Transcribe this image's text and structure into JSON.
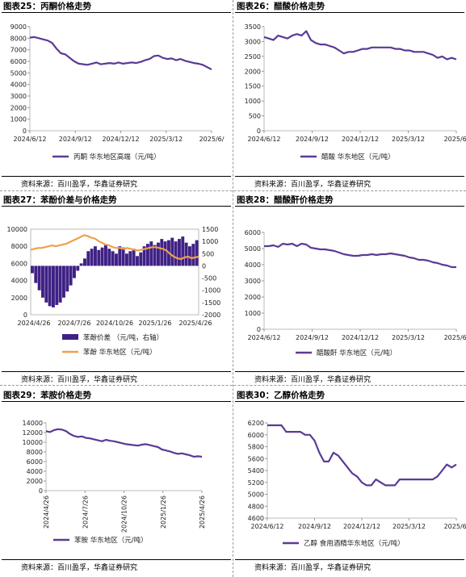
{
  "charts": [
    {
      "id": "c25",
      "title": "图表25：丙酮价格走势",
      "source": "资料来源：百川盈孚，华鑫证券研究",
      "chart_data": {
        "type": "line",
        "ylim": [
          0,
          9000
        ],
        "yticks": [
          0,
          1000,
          2000,
          3000,
          4000,
          5000,
          6000,
          7000,
          8000,
          9000
        ],
        "xticks": [
          "2024/6/12",
          "2024/9/12",
          "2024/12/12",
          "2025/3/12",
          "2025/6/"
        ],
        "series": [
          {
            "name": "丙酮 华东地区高端（元/吨）",
            "color": "#5b3a96",
            "values": [
              8050,
              8100,
              8000,
              7900,
              7800,
              7600,
              7100,
              6700,
              6600,
              6300,
              6000,
              5800,
              5750,
              5700,
              5800,
              5900,
              5750,
              5800,
              5850,
              5800,
              5900,
              5800,
              5850,
              5900,
              5850,
              5950,
              6100,
              6200,
              6450,
              6500,
              6300,
              6200,
              6250,
              6100,
              6200,
              6050,
              5950,
              5850,
              5800,
              5700,
              5500,
              5300
            ]
          }
        ]
      }
    },
    {
      "id": "c26",
      "title": "图表26：醋酸价格走势",
      "source": "资料来源：百川盈孚，华鑫证券研究",
      "chart_data": {
        "type": "line",
        "ylim": [
          0,
          3500
        ],
        "yticks": [
          0,
          500,
          1000,
          1500,
          2000,
          2500,
          3000,
          3500
        ],
        "xticks": [
          "2024/6/12",
          "2024/9/12",
          "2024/12/12",
          "2025/3/12",
          "2025/6/"
        ],
        "series": [
          {
            "name": "醋酸 华东地区（元/吨）",
            "color": "#5b3a96",
            "values": [
              3150,
              3100,
              3050,
              3200,
              3150,
              3100,
              3200,
              3250,
              3200,
              3350,
              3050,
              2950,
              2900,
              2900,
              2850,
              2800,
              2700,
              2600,
              2650,
              2650,
              2700,
              2750,
              2750,
              2800,
              2800,
              2800,
              2800,
              2800,
              2750,
              2750,
              2700,
              2700,
              2650,
              2650,
              2650,
              2600,
              2550,
              2450,
              2500,
              2400,
              2450,
              2400
            ]
          }
        ]
      }
    },
    {
      "id": "c27",
      "title": "图表27：苯酚价差与价格走势",
      "source": "资料来源：百川盈孚，华鑫证券研究",
      "chart_data": {
        "type": "bar",
        "ylim": [
          0,
          10000
        ],
        "yticks": [
          0,
          2000,
          4000,
          6000,
          8000,
          10000
        ],
        "y2lim": [
          -2000,
          1500
        ],
        "y2ticks": [
          -2000,
          -1500,
          -1000,
          -500,
          0,
          500,
          1000,
          1500
        ],
        "xticks": [
          "2024/4/26",
          "2024/7/26",
          "2024/10/26",
          "2025/1/26",
          "2025/4/26"
        ],
        "series": [
          {
            "name": "苯酚价差 （元/吨，右轴）",
            "color": "#3f2185",
            "axis": "right",
            "values": [
              -300,
              -700,
              -1000,
              -1300,
              -1500,
              -1650,
              -1700,
              -1600,
              -1500,
              -1300,
              -1050,
              -800,
              -500,
              -200,
              100,
              300,
              600,
              700,
              800,
              650,
              750,
              850,
              700,
              600,
              500,
              800,
              750,
              500,
              600,
              700,
              400,
              550,
              800,
              900,
              1000,
              850,
              950,
              1100,
              1000,
              1050,
              1150,
              1000,
              1100,
              1200,
              950,
              800,
              900,
              1050
            ]
          },
          {
            "name": "苯酚 华东地区（元/吨）",
            "color": "#f0a04b",
            "axis": "left",
            "values": [
              7600,
              7700,
              7800,
              7800,
              7900,
              8000,
              8100,
              8000,
              8100,
              8200,
              8300,
              8500,
              8700,
              8900,
              9100,
              9300,
              9200,
              9000,
              8900,
              8600,
              8400,
              8200,
              8100,
              7900,
              7800,
              7800,
              7700,
              7800,
              7700,
              7600,
              7500,
              7600,
              7700,
              7800,
              7900,
              7900,
              7800,
              7700,
              7500,
              7100,
              6800,
              6600,
              6500,
              6700,
              6800,
              6600,
              6700,
              6800
            ]
          }
        ]
      }
    },
    {
      "id": "c28",
      "title": "图表28：醋酸酐价格走势",
      "source": "资料来源：百川盈孚，华鑫证券研究",
      "chart_data": {
        "type": "line",
        "ylim": [
          0,
          6000
        ],
        "yticks": [
          0,
          1000,
          2000,
          3000,
          4000,
          5000,
          6000
        ],
        "xticks": [
          "2024/6/12",
          "2024/9/12",
          "2024/12/12",
          "2025/3/12",
          "2025/6/"
        ],
        "series": [
          {
            "name": "醋酸酐 华东地区（元/吨）",
            "color": "#5b3a96",
            "values": [
              5150,
              5150,
              5200,
              5100,
              5300,
              5250,
              5300,
              5150,
              5300,
              5250,
              5050,
              5000,
              4950,
              4950,
              4900,
              4850,
              4750,
              4650,
              4600,
              4550,
              4550,
              4600,
              4600,
              4650,
              4600,
              4650,
              4650,
              4700,
              4650,
              4600,
              4550,
              4450,
              4400,
              4300,
              4300,
              4250,
              4150,
              4100,
              4000,
              3950,
              3850,
              3850
            ]
          }
        ]
      }
    },
    {
      "id": "c29",
      "title": "图表29：苯胺价格走势",
      "source": "资料来源：百川盈孚，华鑫证券研究",
      "chart_data": {
        "type": "line",
        "ylim": [
          0,
          14000
        ],
        "yticks": [
          0,
          2000,
          4000,
          6000,
          8000,
          10000,
          12000,
          14000
        ],
        "xticks": [
          "2024/4/26",
          "2024/7/26",
          "2024/10/26",
          "2025/1/26",
          "2025/4/26"
        ],
        "series": [
          {
            "name": "苯胺 华东地区（元/吨）",
            "color": "#5b3a96",
            "values": [
              12300,
              12100,
              12500,
              12700,
              12600,
              12300,
              11700,
              11300,
              11100,
              11200,
              10900,
              10800,
              10600,
              10400,
              10200,
              10500,
              10300,
              10200,
              10000,
              9800,
              9600,
              9500,
              9400,
              9300,
              9500,
              9600,
              9400,
              9200,
              9000,
              8500,
              8300,
              8100,
              7800,
              7600,
              7700,
              7500,
              7300,
              7000,
              7100,
              7000
            ]
          }
        ]
      }
    },
    {
      "id": "c30",
      "title": "图表30：乙醇价格走势",
      "source": "资料来源：百川盈孚，华鑫证券研究",
      "chart_data": {
        "type": "line",
        "ylim": [
          4600,
          6200
        ],
        "yticks": [
          4600,
          4800,
          5000,
          5200,
          5400,
          5600,
          5800,
          6000,
          6200
        ],
        "xticks": [
          "2024/6/12",
          "2024/9/12",
          "2024/12/12",
          "2025/3/12",
          "2025/6/"
        ],
        "series": [
          {
            "name": "乙醇 食用酒精华东地区（元/吨）",
            "color": "#5b3a96",
            "values": [
              6160,
              6160,
              6160,
              6160,
              6050,
              6050,
              6050,
              6050,
              6000,
              6000,
              5900,
              5700,
              5550,
              5550,
              5700,
              5650,
              5550,
              5450,
              5350,
              5300,
              5200,
              5150,
              5150,
              5250,
              5200,
              5150,
              5150,
              5150,
              5250,
              5250,
              5250,
              5250,
              5250,
              5250,
              5250,
              5250,
              5300,
              5400,
              5500,
              5450,
              5500
            ]
          }
        ]
      }
    }
  ]
}
